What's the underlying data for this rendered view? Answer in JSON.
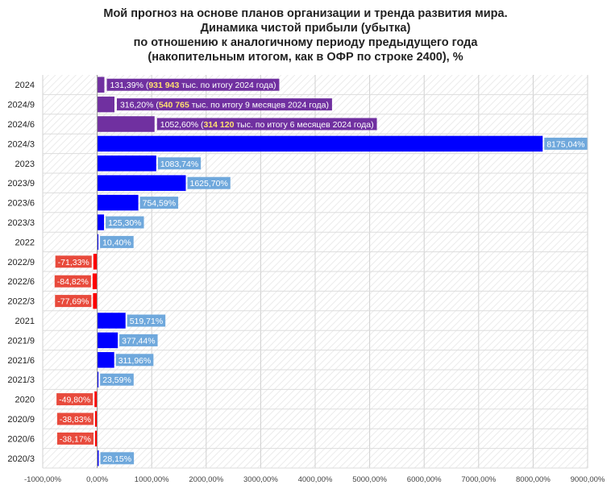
{
  "chart_data": {
    "type": "bar",
    "orientation": "horizontal",
    "title_lines": [
      "Мой прогноз на основе планов организации и тренда развития мира.",
      "Динамика чистой прибыли (убытка)",
      "по отношению к аналогичному периоду предыдущего года",
      "(накопительным итогом, как в ОФР по строке 2400), %"
    ],
    "categories": [
      "2024",
      "2024/9",
      "2024/6",
      "2024/3",
      "2023",
      "2023/9",
      "2023/6",
      "2023/3",
      "2022",
      "2022/9",
      "2022/6",
      "2022/3",
      "2021",
      "2021/9",
      "2021/6",
      "2021/3",
      "2020",
      "2020/9",
      "2020/6",
      "2020/3"
    ],
    "values": [
      131.39,
      316.2,
      1052.6,
      8175.04,
      1083.74,
      1625.7,
      754.59,
      125.3,
      10.4,
      -71.33,
      -84.82,
      -77.69,
      519.71,
      377.44,
      311.96,
      23.59,
      -49.8,
      -38.83,
      -38.17,
      28.15
    ],
    "labels": [
      "131,39%",
      "316,20%",
      "1052,60%",
      "8175,04%",
      "1083,74%",
      "1625,70%",
      "754,59%",
      "125,30%",
      "10,40%",
      "-71,33%",
      "-84,82%",
      "-77,69%",
      "519,71%",
      "377,44%",
      "311,96%",
      "23,59%",
      "-49,80%",
      "-38,83%",
      "-38,17%",
      "28,15%"
    ],
    "label_notes": [
      {
        "amount": "931 943",
        "rest": " тыс. по итогу 2024 года)"
      },
      {
        "amount": "540 765",
        "rest": " тыс. по итогу 9 месяцев 2024 года)"
      },
      {
        "amount": "314 120",
        "rest": " тыс. по итогу 6 месяцев 2024 года)"
      }
    ],
    "xlim": [
      -1000,
      9000
    ],
    "xticks": [
      -1000,
      0,
      1000,
      2000,
      3000,
      4000,
      5000,
      6000,
      7000,
      8000,
      9000
    ],
    "xtick_labels": [
      "-1000,00%",
      "0,00%",
      "1000,00%",
      "2000,00%",
      "3000,00%",
      "4000,00%",
      "5000,00%",
      "6000,00%",
      "7000,00%",
      "8000,00%",
      "9000,00%"
    ],
    "colors": {
      "forecast": "#7030a0",
      "positive": "#0000ff",
      "negative": "#ff0000",
      "label_bg_blue": "#6fa8dc",
      "label_bg_red": "#e84a3c",
      "label_bg_purple": "#7030a0",
      "note_highlight": "#ffe070",
      "grid": "#d0d0d0"
    }
  }
}
